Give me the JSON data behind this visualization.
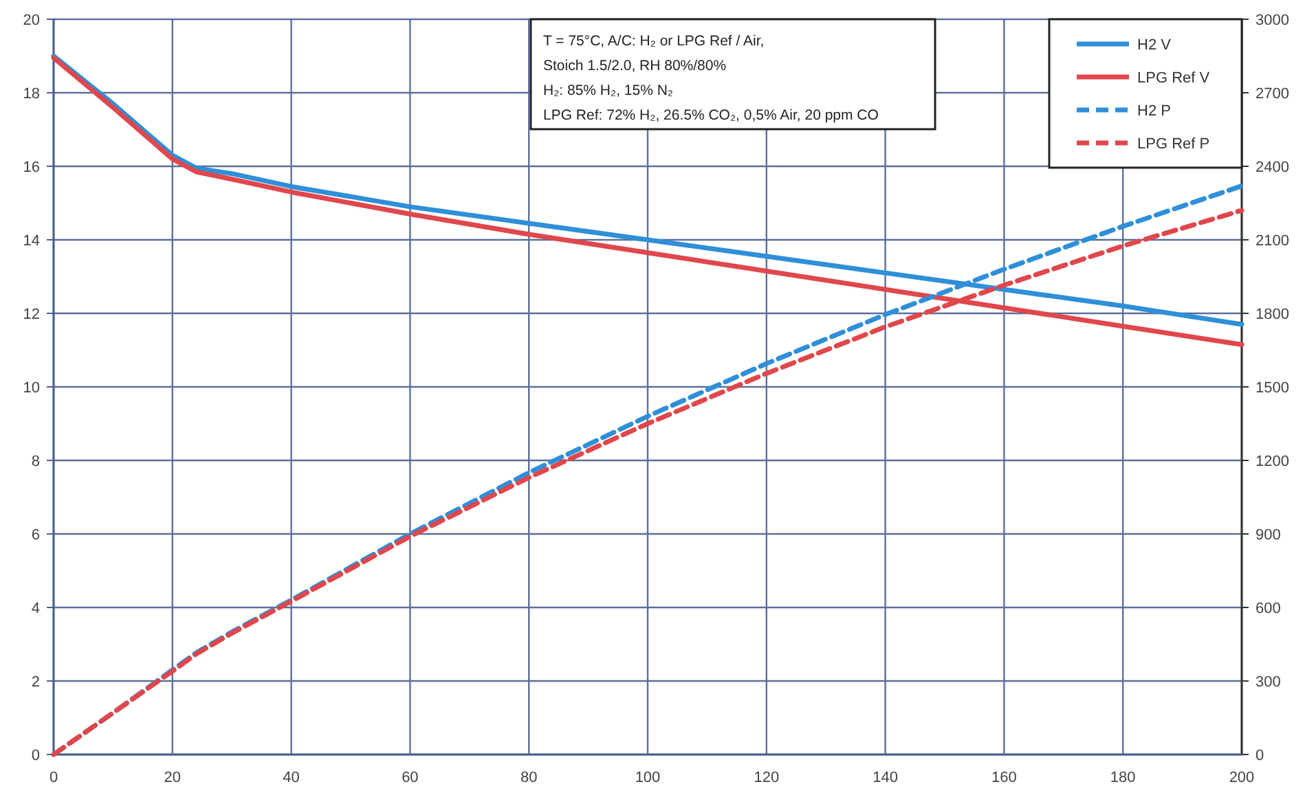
{
  "chart_data": {
    "type": "line",
    "x": [
      0,
      10,
      20,
      24,
      30,
      40,
      60,
      80,
      100,
      120,
      140,
      160,
      180,
      200
    ],
    "xlim": [
      0,
      200
    ],
    "xticks": [
      0,
      20,
      40,
      60,
      80,
      100,
      120,
      140,
      160,
      180,
      200
    ],
    "ylim": [
      0,
      20
    ],
    "yticks": [
      0,
      2,
      4,
      6,
      8,
      10,
      12,
      14,
      16,
      18,
      20
    ],
    "y2lim": [
      0,
      3000
    ],
    "y2ticks": [
      0,
      300,
      600,
      900,
      1200,
      1500,
      1800,
      2100,
      2400,
      2700,
      3000
    ],
    "grid": true,
    "legend": "top right",
    "annotations": [
      "T = 75°C, A/C: H₂ or LPG Ref / Air,",
      "Stoich 1.5/2.0, RH 80%/80%",
      "H₂: 85% H₂, 15% N₂",
      "LPG Ref: 72% H₂, 26.5% CO₂, 0,5% Air, 20 ppm CO"
    ],
    "series": [
      {
        "name": "H2 V",
        "color": "#2f8fd8",
        "line_style": "solid",
        "values": [
          19.0,
          17.7,
          16.3,
          15.95,
          15.8,
          15.45,
          14.9,
          14.45,
          14.0,
          13.55,
          13.1,
          12.65,
          12.2,
          11.7
        ]
      },
      {
        "name": "LPG Ref V",
        "color": "#e0474c",
        "line_style": "solid",
        "values": [
          18.95,
          17.6,
          16.2,
          15.85,
          15.65,
          15.3,
          14.7,
          14.15,
          13.65,
          13.15,
          12.65,
          12.15,
          11.65,
          11.15
        ]
      },
      {
        "name": "H2 P",
        "color": "#2f8fd8",
        "line_style": "dashed",
        "axis": "y2",
        "values": [
          0,
          170,
          345,
          415,
          500,
          630,
          900,
          1150,
          1380,
          1595,
          1795,
          1980,
          2155,
          2320
        ]
      },
      {
        "name": "LPG Ref P",
        "color": "#e0474c",
        "line_style": "dashed",
        "axis": "y2",
        "values": [
          0,
          170,
          340,
          410,
          495,
          625,
          890,
          1130,
          1350,
          1555,
          1745,
          1915,
          2075,
          2220
        ]
      }
    ]
  }
}
